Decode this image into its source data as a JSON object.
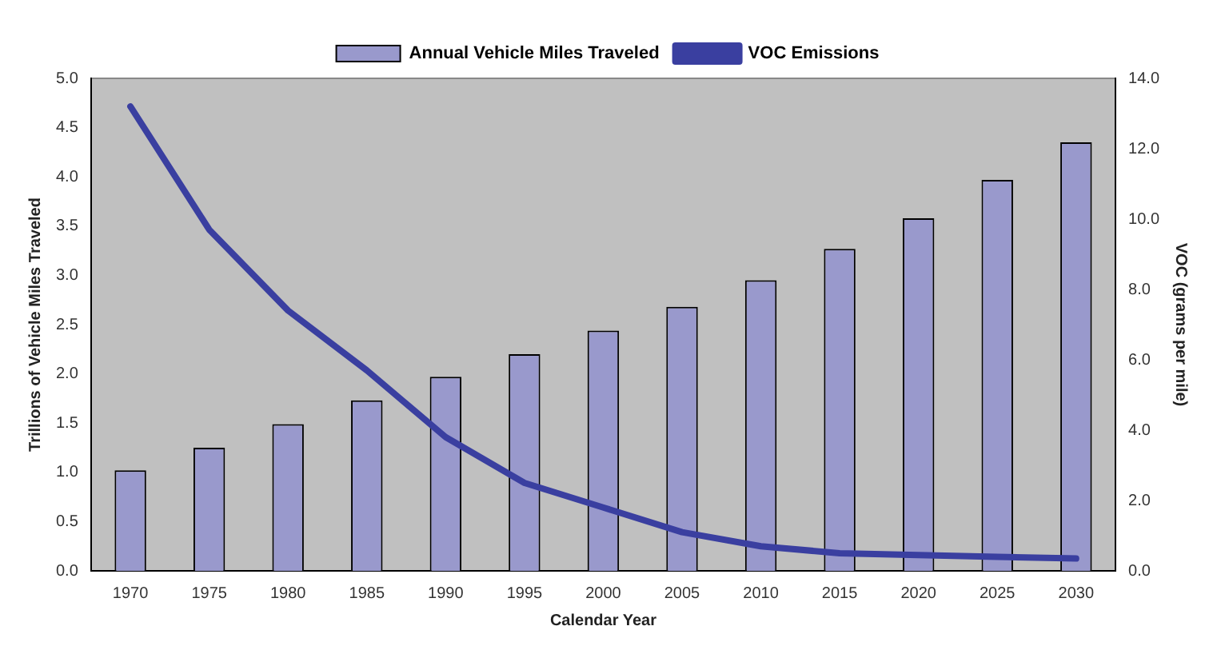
{
  "chart_data": {
    "type": "bar",
    "xlabel": "Calendar Year",
    "ylabel": "Trillions of Vehicle Miles Traveled",
    "y2label": "VOC (grams per mile)",
    "categories": [
      "1970",
      "1975",
      "1980",
      "1985",
      "1990",
      "1995",
      "2000",
      "2005",
      "2010",
      "2015",
      "2020",
      "2025",
      "2030"
    ],
    "series": [
      {
        "name": "Annual Vehicle Miles Traveled",
        "color": "#9999cc",
        "values": [
          1.02,
          1.25,
          1.49,
          1.73,
          1.97,
          2.2,
          2.44,
          2.68,
          2.95,
          3.27,
          3.58,
          3.97,
          4.35
        ]
      },
      {
        "name": "VOC Emissions",
        "type": "line",
        "axis": "y2",
        "color": "#3a3fa0",
        "values": [
          13.2,
          9.7,
          7.4,
          5.7,
          3.8,
          2.5,
          1.8,
          1.1,
          0.7,
          0.5,
          0.45,
          0.4,
          0.35
        ]
      }
    ],
    "ylim": [
      0,
      5
    ],
    "yticks": [
      {
        "value": 0,
        "label": "0.0"
      },
      {
        "value": 0.5,
        "label": "0.5"
      },
      {
        "value": 1,
        "label": "1.0"
      },
      {
        "value": 1.5,
        "label": "1.5"
      },
      {
        "value": 2,
        "label": "2.0"
      },
      {
        "value": 2.5,
        "label": "2.5"
      },
      {
        "value": 3,
        "label": "3.0"
      },
      {
        "value": 3.5,
        "label": "3.5"
      },
      {
        "value": 4,
        "label": "4.0"
      },
      {
        "value": 4.5,
        "label": "4.5"
      },
      {
        "value": 5,
        "label": "5.0"
      }
    ],
    "y2lim": [
      0,
      14
    ],
    "y2ticks": [
      {
        "value": 0,
        "label": "0.0"
      },
      {
        "value": 2,
        "label": "2.0"
      },
      {
        "value": 4,
        "label": "4.0"
      },
      {
        "value": 6,
        "label": "6.0"
      },
      {
        "value": 8,
        "label": "8.0"
      },
      {
        "value": 10,
        "label": "10.0"
      },
      {
        "value": 12,
        "label": "12.0"
      },
      {
        "value": 14,
        "label": "14.0"
      }
    ],
    "grid": false,
    "legend": "top",
    "marker": "none",
    "line_style": "solid"
  }
}
